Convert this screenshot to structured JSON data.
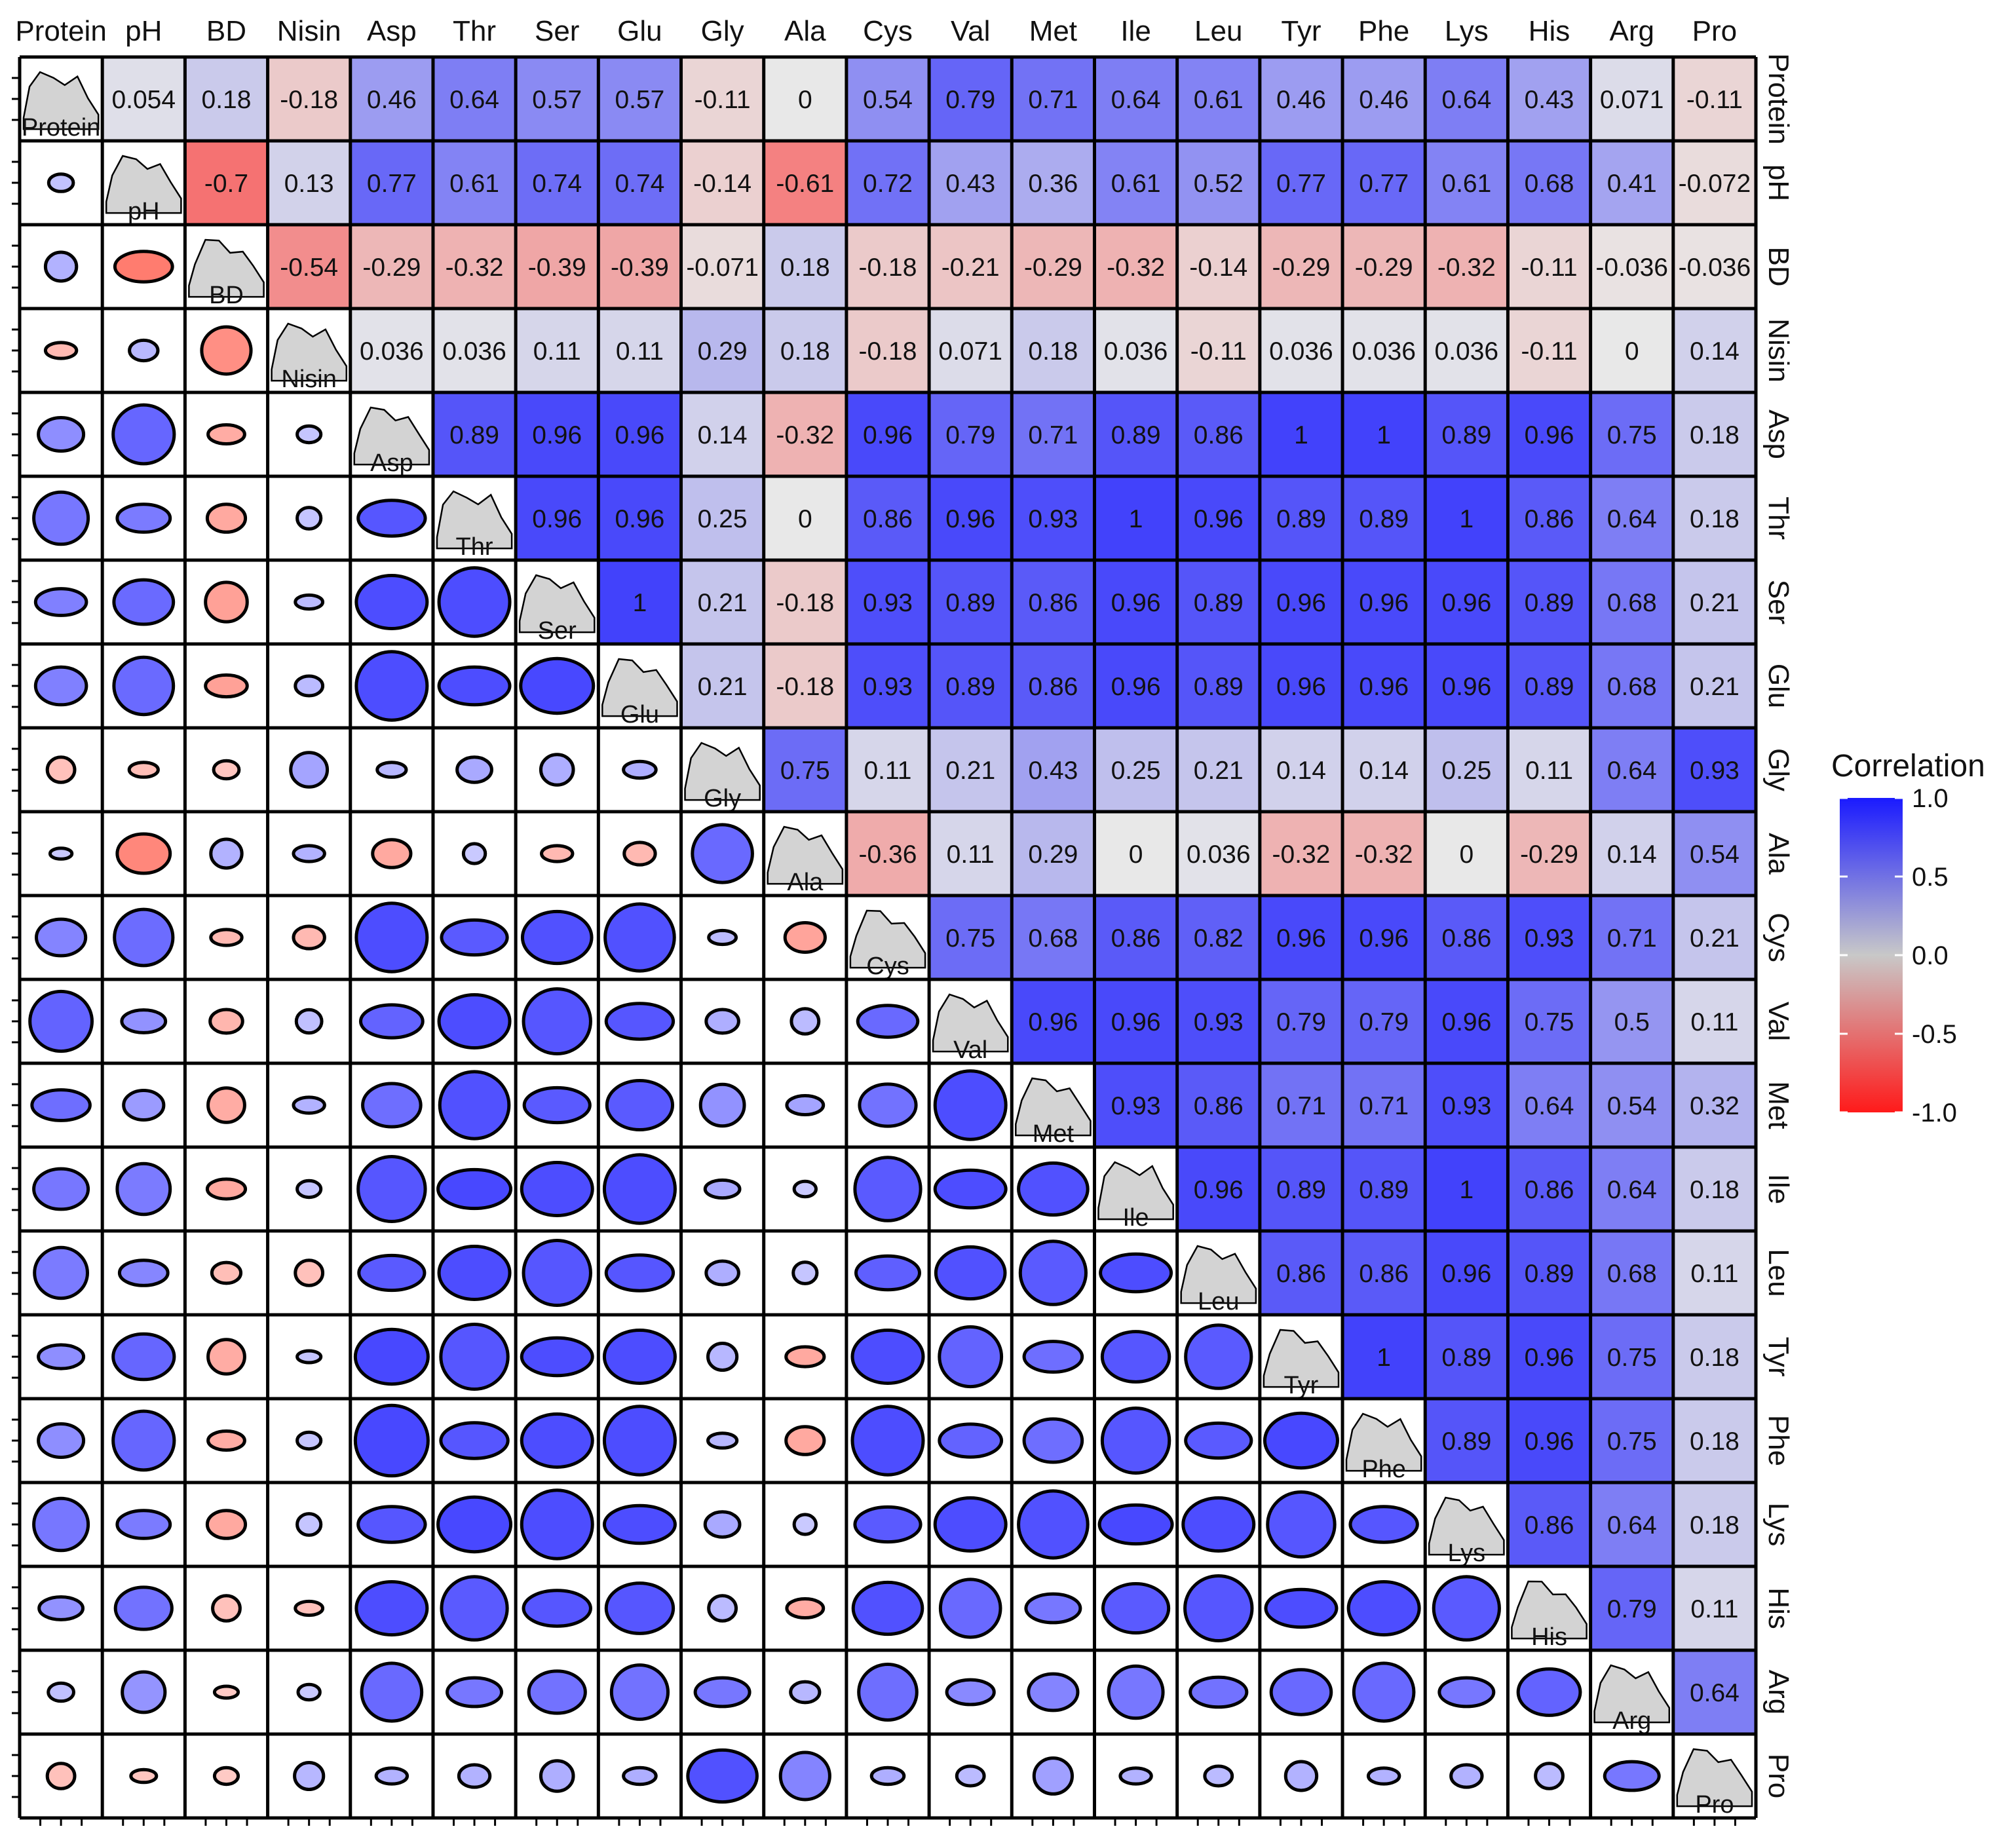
{
  "chart_data": {
    "type": "heatmap",
    "subtype": "correlation-matrix",
    "variables": [
      "Protein",
      "pH",
      "BD",
      "Nisin",
      "Asp",
      "Thr",
      "Ser",
      "Glu",
      "Gly",
      "Ala",
      "Cys",
      "Val",
      "Met",
      "Ile",
      "Leu",
      "Tyr",
      "Phe",
      "Lys",
      "His",
      "Arg",
      "Pro"
    ],
    "upper_labels": [
      [
        null,
        "0.054",
        "0.18",
        "-0.18",
        "0.46",
        "0.64",
        "0.57",
        "0.57",
        "-0.11",
        "0",
        "0.54",
        "0.79",
        "0.71",
        "0.64",
        "0.61",
        "0.46",
        "0.46",
        "0.64",
        "0.43",
        "0.071",
        "-0.11"
      ],
      [
        null,
        null,
        "-0.7",
        "0.13",
        "0.77",
        "0.61",
        "0.74",
        "0.74",
        "-0.14",
        "-0.61",
        "0.72",
        "0.43",
        "0.36",
        "0.61",
        "0.52",
        "0.77",
        "0.77",
        "0.61",
        "0.68",
        "0.41",
        "-0.072"
      ],
      [
        null,
        null,
        null,
        "-0.54",
        "-0.29",
        "-0.32",
        "-0.39",
        "-0.39",
        "-0.071",
        "0.18",
        "-0.18",
        "-0.21",
        "-0.29",
        "-0.32",
        "-0.14",
        "-0.29",
        "-0.29",
        "-0.32",
        "-0.11",
        "-0.036",
        "-0.036"
      ],
      [
        null,
        null,
        null,
        null,
        "0.036",
        "0.036",
        "0.11",
        "0.11",
        "0.29",
        "0.18",
        "-0.18",
        "0.071",
        "0.18",
        "0.036",
        "-0.11",
        "0.036",
        "0.036",
        "0.036",
        "-0.11",
        "0",
        "0.14"
      ],
      [
        null,
        null,
        null,
        null,
        null,
        "0.89",
        "0.96",
        "0.96",
        "0.14",
        "-0.32",
        "0.96",
        "0.79",
        "0.71",
        "0.89",
        "0.86",
        "1",
        "1",
        "0.89",
        "0.96",
        "0.75",
        "0.18"
      ],
      [
        null,
        null,
        null,
        null,
        null,
        null,
        "0.96",
        "0.96",
        "0.25",
        "0",
        "0.86",
        "0.96",
        "0.93",
        "1",
        "0.96",
        "0.89",
        "0.89",
        "1",
        "0.86",
        "0.64",
        "0.18"
      ],
      [
        null,
        null,
        null,
        null,
        null,
        null,
        null,
        "1",
        "0.21",
        "-0.18",
        "0.93",
        "0.89",
        "0.86",
        "0.96",
        "0.89",
        "0.96",
        "0.96",
        "0.96",
        "0.89",
        "0.68",
        "0.21"
      ],
      [
        null,
        null,
        null,
        null,
        null,
        null,
        null,
        null,
        "0.21",
        "-0.18",
        "0.93",
        "0.89",
        "0.86",
        "0.96",
        "0.89",
        "0.96",
        "0.96",
        "0.96",
        "0.89",
        "0.68",
        "0.21"
      ],
      [
        null,
        null,
        null,
        null,
        null,
        null,
        null,
        null,
        null,
        "0.75",
        "0.11",
        "0.21",
        "0.43",
        "0.25",
        "0.21",
        "0.14",
        "0.14",
        "0.25",
        "0.11",
        "0.64",
        "0.93"
      ],
      [
        null,
        null,
        null,
        null,
        null,
        null,
        null,
        null,
        null,
        null,
        "-0.36",
        "0.11",
        "0.29",
        "0",
        "0.036",
        "-0.32",
        "-0.32",
        "0",
        "-0.29",
        "0.14",
        "0.54"
      ],
      [
        null,
        null,
        null,
        null,
        null,
        null,
        null,
        null,
        null,
        null,
        null,
        "0.75",
        "0.68",
        "0.86",
        "0.82",
        "0.96",
        "0.96",
        "0.86",
        "0.93",
        "0.71",
        "0.21"
      ],
      [
        null,
        null,
        null,
        null,
        null,
        null,
        null,
        null,
        null,
        null,
        null,
        null,
        "0.96",
        "0.96",
        "0.93",
        "0.79",
        "0.79",
        "0.96",
        "0.75",
        "0.5",
        "0.11"
      ],
      [
        null,
        null,
        null,
        null,
        null,
        null,
        null,
        null,
        null,
        null,
        null,
        null,
        null,
        "0.93",
        "0.86",
        "0.71",
        "0.71",
        "0.93",
        "0.64",
        "0.54",
        "0.32"
      ],
      [
        null,
        null,
        null,
        null,
        null,
        null,
        null,
        null,
        null,
        null,
        null,
        null,
        null,
        null,
        "0.96",
        "0.89",
        "0.89",
        "1",
        "0.86",
        "0.64",
        "0.18"
      ],
      [
        null,
        null,
        null,
        null,
        null,
        null,
        null,
        null,
        null,
        null,
        null,
        null,
        null,
        null,
        null,
        "0.86",
        "0.86",
        "0.96",
        "0.89",
        "0.68",
        "0.11"
      ],
      [
        null,
        null,
        null,
        null,
        null,
        null,
        null,
        null,
        null,
        null,
        null,
        null,
        null,
        null,
        null,
        null,
        "1",
        "0.89",
        "0.96",
        "0.75",
        "0.18"
      ],
      [
        null,
        null,
        null,
        null,
        null,
        null,
        null,
        null,
        null,
        null,
        null,
        null,
        null,
        null,
        null,
        null,
        null,
        "0.89",
        "0.96",
        "0.75",
        "0.18"
      ],
      [
        null,
        null,
        null,
        null,
        null,
        null,
        null,
        null,
        null,
        null,
        null,
        null,
        null,
        null,
        null,
        null,
        null,
        null,
        "0.86",
        "0.64",
        "0.18"
      ],
      [
        null,
        null,
        null,
        null,
        null,
        null,
        null,
        null,
        null,
        null,
        null,
        null,
        null,
        null,
        null,
        null,
        null,
        null,
        null,
        "0.79",
        "0.11"
      ],
      [
        null,
        null,
        null,
        null,
        null,
        null,
        null,
        null,
        null,
        null,
        null,
        null,
        null,
        null,
        null,
        null,
        null,
        null,
        null,
        null,
        "0.64"
      ],
      [
        null,
        null,
        null,
        null,
        null,
        null,
        null,
        null,
        null,
        null,
        null,
        null,
        null,
        null,
        null,
        null,
        null,
        null,
        null,
        null,
        null
      ]
    ],
    "legend": {
      "title": "Correlation",
      "ticks": [
        "1.0",
        "0.5",
        "0.0",
        "-0.5",
        "-1.0"
      ],
      "range": [
        -1,
        1
      ],
      "placement": "right",
      "color_low": "#ff1a1a",
      "color_mid": "#c8c8c8",
      "color_high": "#1a1aff"
    },
    "diagonal": "density-plot",
    "lower": "ellipse",
    "upper": "colored-value",
    "grid": true
  }
}
